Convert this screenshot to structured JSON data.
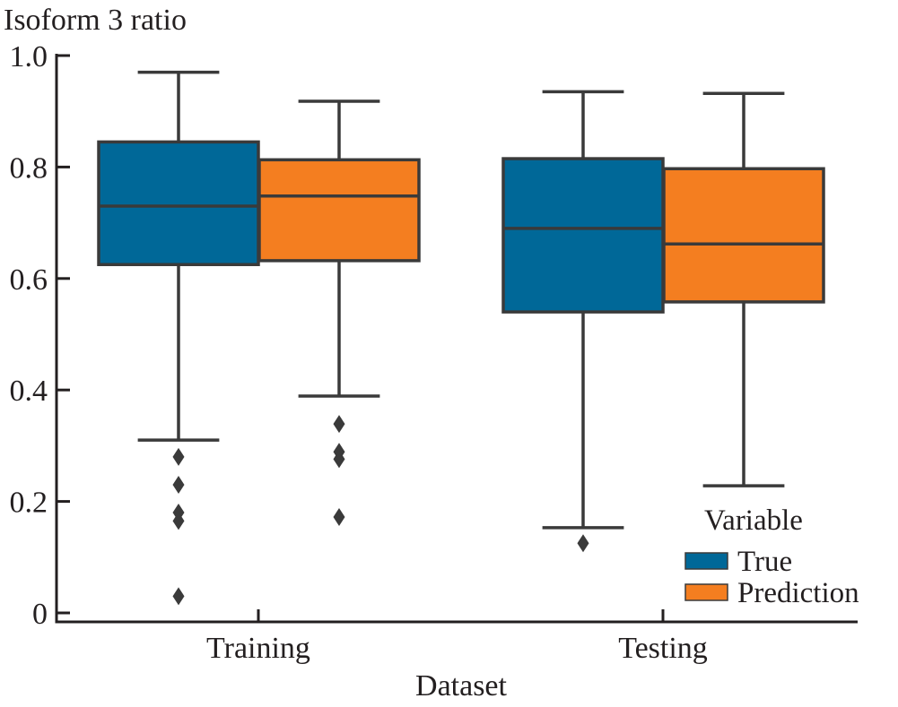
{
  "chart_data": {
    "type": "box",
    "title": "",
    "ylabel": "Isoform 3 ratio",
    "xlabel": "Dataset",
    "ylim": [
      0,
      1.0
    ],
    "yticks": [
      0,
      0.2,
      0.4,
      0.6,
      0.8,
      1.0
    ],
    "ytick_labels": [
      "0",
      "0.2",
      "0.4",
      "0.6",
      "0.8",
      "1.0"
    ],
    "categories": [
      "Training",
      "Testing"
    ],
    "grid": false,
    "legend": {
      "title": "Variable",
      "position": "bottom-right",
      "entries": [
        "True",
        "Prediction"
      ]
    },
    "series": [
      {
        "name": "True",
        "color": "#006898",
        "boxes": [
          {
            "category": "Training",
            "whisker_low": 0.31,
            "q1": 0.625,
            "median": 0.73,
            "q3": 0.845,
            "whisker_high": 0.97,
            "outliers": [
              0.28,
              0.23,
              0.18,
              0.165,
              0.03
            ]
          },
          {
            "category": "Testing",
            "whisker_low": 0.153,
            "q1": 0.54,
            "median": 0.69,
            "q3": 0.815,
            "whisker_high": 0.935,
            "outliers": [
              0.125
            ]
          }
        ]
      },
      {
        "name": "Prediction",
        "color": "#f47e20",
        "boxes": [
          {
            "category": "Training",
            "whisker_low": 0.389,
            "q1": 0.632,
            "median": 0.748,
            "q3": 0.813,
            "whisker_high": 0.918,
            "outliers": [
              0.339,
              0.289,
              0.276,
              0.172
            ]
          },
          {
            "category": "Testing",
            "whisker_low": 0.228,
            "q1": 0.558,
            "median": 0.662,
            "q3": 0.797,
            "whisker_high": 0.932,
            "outliers": []
          }
        ]
      }
    ]
  }
}
